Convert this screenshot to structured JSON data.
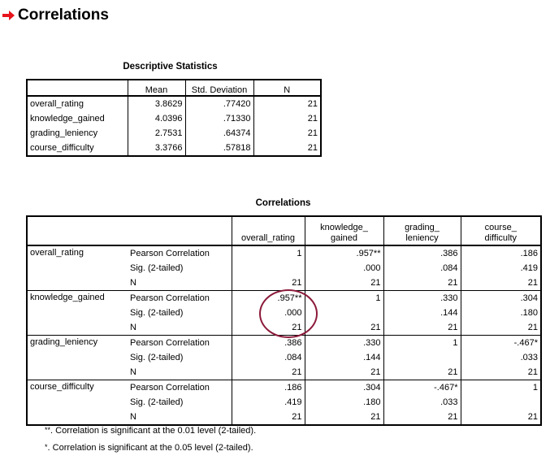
{
  "header": {
    "title": "Correlations",
    "icon": "red-arrow-icon",
    "icon_color": "#e8141b"
  },
  "descriptive": {
    "caption": "Descriptive Statistics",
    "columns": [
      "Mean",
      "Std. Deviation",
      "N"
    ],
    "rows": [
      {
        "label": "overall_rating",
        "mean": "3.8629",
        "sd": ".77420",
        "n": "21"
      },
      {
        "label": "knowledge_gained",
        "mean": "4.0396",
        "sd": ".71330",
        "n": "21"
      },
      {
        "label": "grading_leniency",
        "mean": "2.7531",
        "sd": ".64374",
        "n": "21"
      },
      {
        "label": "course_difficulty",
        "mean": "3.3766",
        "sd": ".57818",
        "n": "21"
      }
    ]
  },
  "correlations": {
    "caption": "Correlations",
    "columns": [
      {
        "line1": "overall_rating",
        "line2": ""
      },
      {
        "line1": "knowledge_",
        "line2": "gained"
      },
      {
        "line1": "grading_",
        "line2": "leniency"
      },
      {
        "line1": "course_",
        "line2": "difficulty"
      }
    ],
    "stat_labels": [
      "Pearson Correlation",
      "Sig. (2-tailed)",
      "N"
    ],
    "groups": [
      {
        "var": "overall_rating",
        "rows": [
          [
            "1",
            ".957**",
            ".386",
            ".186"
          ],
          [
            "",
            ".000",
            ".084",
            ".419"
          ],
          [
            "21",
            "21",
            "21",
            "21"
          ]
        ]
      },
      {
        "var": "knowledge_gained",
        "rows": [
          [
            ".957**",
            "1",
            ".330",
            ".304"
          ],
          [
            ".000",
            "",
            ".144",
            ".180"
          ],
          [
            "21",
            "21",
            "21",
            "21"
          ]
        ]
      },
      {
        "var": "grading_leniency",
        "rows": [
          [
            ".386",
            ".330",
            "1",
            "-.467*"
          ],
          [
            ".084",
            ".144",
            "",
            ".033"
          ],
          [
            "21",
            "21",
            "21",
            "21"
          ]
        ]
      },
      {
        "var": "course_difficulty",
        "rows": [
          [
            ".186",
            ".304",
            "-.467*",
            "1"
          ],
          [
            ".419",
            ".180",
            ".033",
            ""
          ],
          [
            "21",
            "21",
            "21",
            "21"
          ]
        ]
      }
    ]
  },
  "footnotes": [
    {
      "mark": "**",
      "text": ". Correlation is significant at the 0.01 level (2-tailed)."
    },
    {
      "mark": "*",
      "text": ". Correlation is significant at the 0.05 level (2-tailed)."
    }
  ],
  "annotation": {
    "circle_color": "#8b1a3a"
  }
}
